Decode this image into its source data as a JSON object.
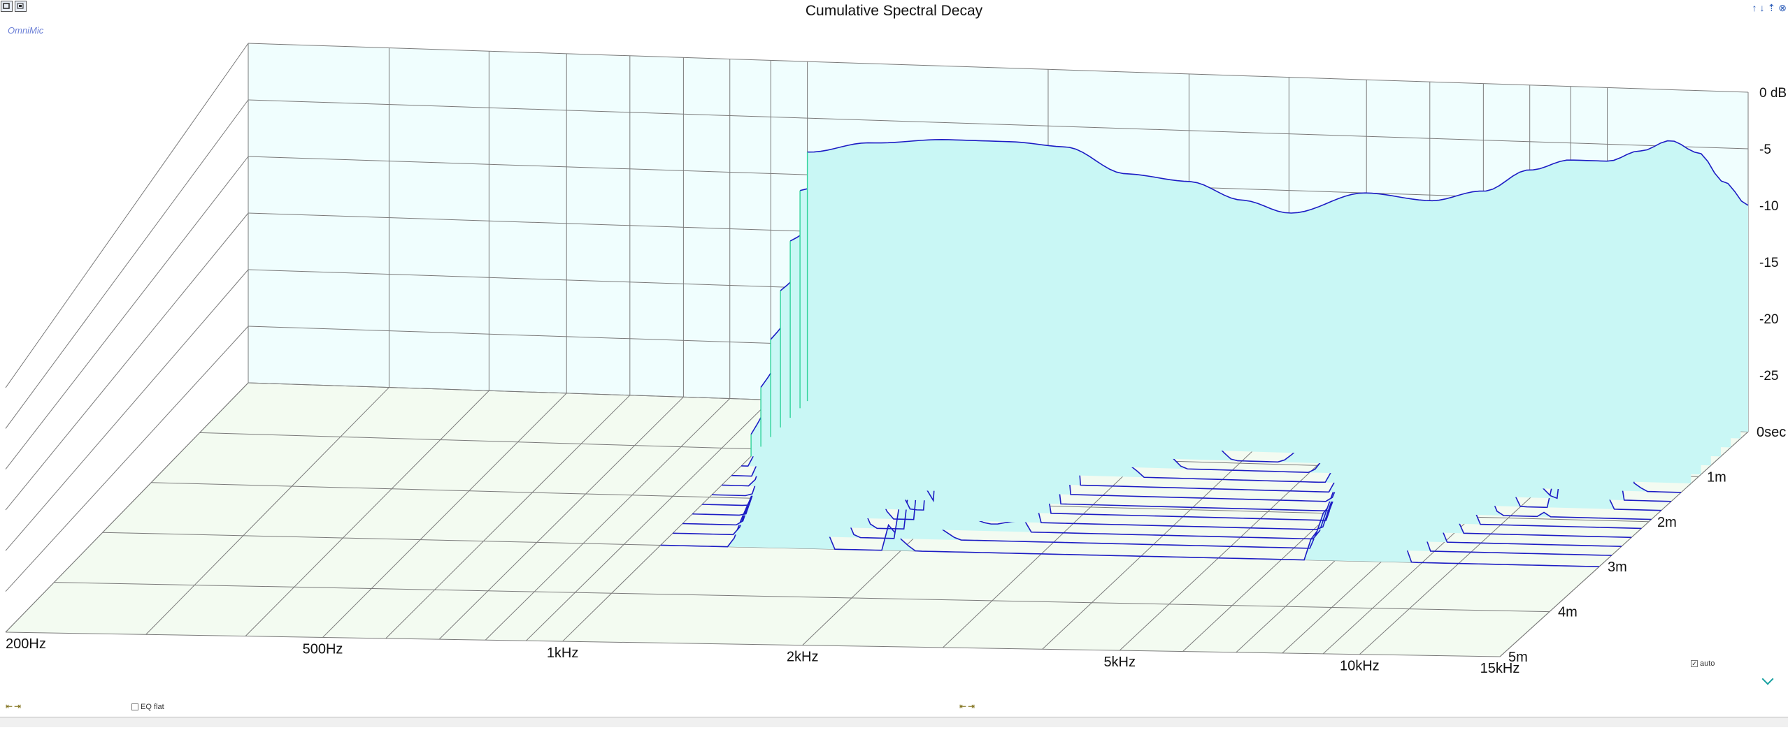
{
  "chart_data": {
    "type": "waterfall",
    "title": "Cumulative Spectral Decay",
    "x_axis": {
      "scale": "log",
      "range_hz": [
        200,
        15000
      ],
      "tick_labels": [
        "200Hz",
        "500Hz",
        "1kHz",
        "2kHz",
        "5kHz",
        "10kHz",
        "15kHz"
      ],
      "tick_values_hz": [
        200,
        500,
        1000,
        2000,
        5000,
        10000,
        15000
      ]
    },
    "y_axis": {
      "unit": "dB",
      "range_db": [
        -30,
        0
      ],
      "tick_labels": [
        "0 dB",
        "-5",
        "-10",
        "-15",
        "-20",
        "-25"
      ],
      "tick_values_db": [
        0,
        -5,
        -10,
        -15,
        -20,
        -25
      ]
    },
    "z_axis": {
      "unit": "ms",
      "range_ms": [
        0,
        5
      ],
      "tick_labels": [
        "0sec",
        "1m",
        "2m",
        "3m",
        "4m",
        "5m"
      ],
      "tick_values_ms": [
        0,
        1,
        2,
        3,
        4,
        5
      ]
    },
    "grid": true,
    "slice_count": 16,
    "slice_times_ms": [
      0,
      0.15,
      0.35,
      0.55,
      0.75,
      0.95,
      1.15,
      1.35,
      1.55,
      1.75,
      1.95,
      2.15,
      2.35,
      2.55,
      2.75,
      3.0
    ],
    "data_start_hz": 1000,
    "initial_response": {
      "freq_hz": [
        1000,
        1200,
        1500,
        1800,
        2100,
        2500,
        3000,
        3500,
        4000,
        5000,
        6000,
        7000,
        8000,
        9000,
        10000,
        11000,
        12000,
        13000,
        14000,
        15000
      ],
      "db": [
        -8,
        -7,
        -6.5,
        -6.5,
        -6.8,
        -9,
        -9.5,
        -11,
        -12,
        -10,
        -10.5,
        -9.5,
        -7.5,
        -6.5,
        -6.5,
        -5.5,
        -4.5,
        -5.5,
        -8,
        -10
      ]
    }
  },
  "ui": {
    "brand": "OmniMic",
    "auto_label": "auto",
    "auto_checked": true,
    "eq_flat_label": "EQ flat",
    "eq_flat_checked": false,
    "left_arrows": "⇤⇥",
    "mid_arrows": "⇤⇥",
    "corner_icons": [
      "↑",
      "↓",
      "⇡",
      "⊗"
    ]
  },
  "colors": {
    "grid_line": "#7a7a7a",
    "back_wall": "#f0fefe",
    "floor": "#f3fbf1",
    "slice_fill": "#c9f7f5",
    "slice_line": "#1c1cc4",
    "slice_edge": "#2fd39a",
    "brand": "#6b7fd6"
  }
}
